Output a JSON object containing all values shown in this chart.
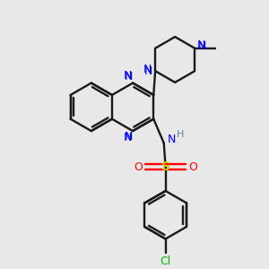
{
  "background_color": "#e8e8e8",
  "bond_color": "#1a1a1a",
  "atom_colors": {
    "N": "#0000ff",
    "S": "#cccc00",
    "O": "#ff0000",
    "Cl": "#00bb00",
    "H": "#708090",
    "C": "#1a1a1a"
  },
  "figsize": [
    3.0,
    3.0
  ],
  "dpi": 100
}
